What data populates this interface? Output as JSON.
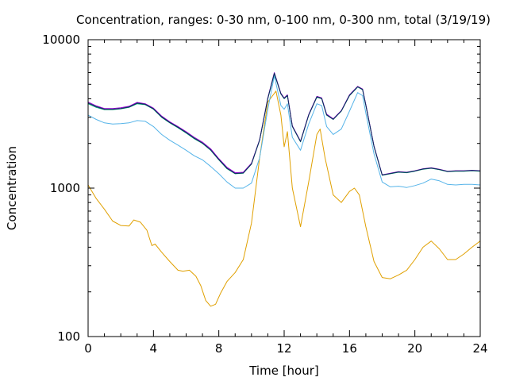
{
  "chart_data": {
    "type": "line",
    "title": "Concentration, ranges: 0-30 nm, 0-100 nm, 0-300 nm, total (3/19/19)",
    "xlabel": "Time [hour]",
    "ylabel": "Concentration",
    "xlim": [
      0,
      24
    ],
    "ylim": [
      100,
      10000
    ],
    "yscale": "log",
    "grid": false,
    "legend": "none",
    "x_ticks": [
      "0",
      "4",
      "8",
      "12",
      "16",
      "20",
      "24"
    ],
    "y_ticks": [
      "100",
      "1000",
      "10000"
    ],
    "series": [
      {
        "color": "#e0a000",
        "x": [
          0,
          0.5,
          1,
          1.5,
          2,
          2.5,
          2.8,
          3.2,
          3.6,
          3.9,
          4.1,
          4.5,
          5,
          5.5,
          5.8,
          6.2,
          6.6,
          6.9,
          7.2,
          7.5,
          7.8,
          8.1,
          8.5,
          9,
          9.5,
          10,
          10.5,
          11,
          11.5,
          11.8,
          12.0,
          12.2,
          12.5,
          13,
          13.5,
          14,
          14.2,
          14.5,
          15,
          15.5,
          16,
          16.3,
          16.6,
          17,
          17.5,
          18,
          18.5,
          19,
          19.5,
          20,
          20.5,
          21,
          21.5,
          22,
          22.5,
          23,
          23.5,
          24
        ],
        "y": [
          1050,
          850,
          720,
          600,
          560,
          555,
          610,
          590,
          520,
          410,
          420,
          370,
          320,
          280,
          275,
          280,
          255,
          220,
          175,
          160,
          165,
          195,
          235,
          270,
          330,
          580,
          1600,
          3800,
          4500,
          3100,
          1900,
          2400,
          1000,
          550,
          1100,
          2300,
          2500,
          1600,
          900,
          800,
          950,
          1000,
          900,
          550,
          320,
          250,
          245,
          260,
          280,
          330,
          400,
          440,
          390,
          330,
          330,
          360,
          400,
          440
        ]
      },
      {
        "color": "#56b4e9",
        "x": [
          0,
          0.5,
          1,
          1.5,
          2,
          2.5,
          3,
          3.5,
          4,
          4.5,
          5,
          5.5,
          6,
          6.5,
          7,
          7.5,
          8,
          8.5,
          9,
          9.5,
          10,
          10.5,
          11,
          11.4,
          11.8,
          12.0,
          12.2,
          12.5,
          13,
          13.5,
          14,
          14.3,
          14.6,
          15,
          15.5,
          16,
          16.5,
          16.8,
          17,
          17.5,
          18,
          18.5,
          19,
          19.5,
          20,
          20.5,
          21,
          21.5,
          22,
          22.5,
          23,
          23.5,
          24
        ],
        "y": [
          3100,
          2900,
          2750,
          2700,
          2720,
          2750,
          2850,
          2820,
          2600,
          2300,
          2100,
          1950,
          1800,
          1650,
          1550,
          1400,
          1250,
          1100,
          1000,
          1000,
          1080,
          1600,
          3400,
          5700,
          3600,
          3400,
          3700,
          2200,
          1800,
          2700,
          3700,
          3600,
          2600,
          2300,
          2500,
          3300,
          4400,
          4200,
          3200,
          1700,
          1100,
          1020,
          1030,
          1010,
          1040,
          1080,
          1150,
          1120,
          1060,
          1050,
          1060,
          1060,
          1050
        ]
      },
      {
        "color": "#009e73",
        "x": [
          0,
          0.5,
          1,
          1.5,
          2,
          2.5,
          3,
          3.5,
          4,
          4.5,
          5,
          5.5,
          6,
          6.5,
          7,
          7.5,
          8,
          8.5,
          9,
          9.5,
          10,
          10.5,
          11,
          11.4,
          11.8,
          12.0,
          12.2,
          12.5,
          13,
          13.5,
          14,
          14.3,
          14.6,
          15,
          15.5,
          16,
          16.5,
          16.8,
          17,
          17.5,
          18,
          18.5,
          19,
          19.5,
          20,
          20.5,
          21,
          21.5,
          22,
          22.5,
          23,
          23.5,
          24
        ],
        "y": [
          3700,
          3500,
          3380,
          3380,
          3420,
          3500,
          3700,
          3650,
          3400,
          3000,
          2750,
          2550,
          2350,
          2150,
          2000,
          1800,
          1550,
          1350,
          1250,
          1260,
          1450,
          2100,
          4000,
          5900,
          4300,
          4000,
          4200,
          2600,
          2050,
          3100,
          4100,
          4000,
          3100,
          2900,
          3300,
          4200,
          4800,
          4600,
          3600,
          1900,
          1220,
          1250,
          1280,
          1270,
          1300,
          1340,
          1360,
          1330,
          1290,
          1300,
          1300,
          1310,
          1300
        ]
      },
      {
        "color": "#9400d3",
        "x": [
          0,
          0.5,
          1,
          1.5,
          2,
          2.5,
          3,
          3.5,
          4,
          4.5,
          5,
          5.5,
          6,
          6.5,
          7,
          7.5,
          8,
          8.5,
          9,
          9.5,
          10,
          10.5,
          11,
          11.4,
          11.8,
          12.0,
          12.2,
          12.5,
          13,
          13.5,
          14,
          14.3,
          14.6,
          15,
          15.5,
          16,
          16.5,
          16.8,
          17,
          17.5,
          18,
          18.5,
          19,
          19.5,
          20,
          20.5,
          21,
          21.5,
          22,
          22.5,
          23,
          23.5,
          24
        ],
        "y": [
          3800,
          3580,
          3440,
          3440,
          3480,
          3560,
          3780,
          3700,
          3460,
          3060,
          2800,
          2600,
          2400,
          2200,
          2040,
          1840,
          1580,
          1380,
          1270,
          1280,
          1470,
          2120,
          4050,
          6000,
          4350,
          4050,
          4250,
          2630,
          2070,
          3130,
          4150,
          4050,
          3150,
          2930,
          3330,
          4250,
          4850,
          4650,
          3650,
          1920,
          1230,
          1260,
          1290,
          1280,
          1310,
          1350,
          1370,
          1340,
          1300,
          1310,
          1310,
          1320,
          1310
        ]
      },
      {
        "color": "#0a2a5a",
        "x": [
          0,
          0.5,
          1,
          1.5,
          2,
          2.5,
          3,
          3.5,
          4,
          4.5,
          5,
          5.5,
          6,
          6.5,
          7,
          7.5,
          8,
          8.5,
          9,
          9.5,
          10,
          10.5,
          11,
          11.4,
          11.8,
          12.0,
          12.2,
          12.5,
          13,
          13.5,
          14,
          14.3,
          14.6,
          15,
          15.5,
          16,
          16.5,
          16.8,
          17,
          17.5,
          18,
          18.5,
          19,
          19.5,
          20,
          20.5,
          21,
          21.5,
          22,
          22.5,
          23,
          23.5,
          24
        ],
        "y": [
          3750,
          3540,
          3400,
          3400,
          3440,
          3520,
          3740,
          3670,
          3420,
          3020,
          2770,
          2570,
          2370,
          2170,
          2010,
          1810,
          1560,
          1360,
          1255,
          1265,
          1455,
          2110,
          4020,
          5950,
          4320,
          4020,
          4220,
          2610,
          2060,
          3110,
          4120,
          4020,
          3120,
          2910,
          3310,
          4220,
          4820,
          4620,
          3620,
          1910,
          1225,
          1255,
          1285,
          1275,
          1305,
          1345,
          1365,
          1335,
          1295,
          1305,
          1305,
          1315,
          1305
        ]
      }
    ]
  }
}
